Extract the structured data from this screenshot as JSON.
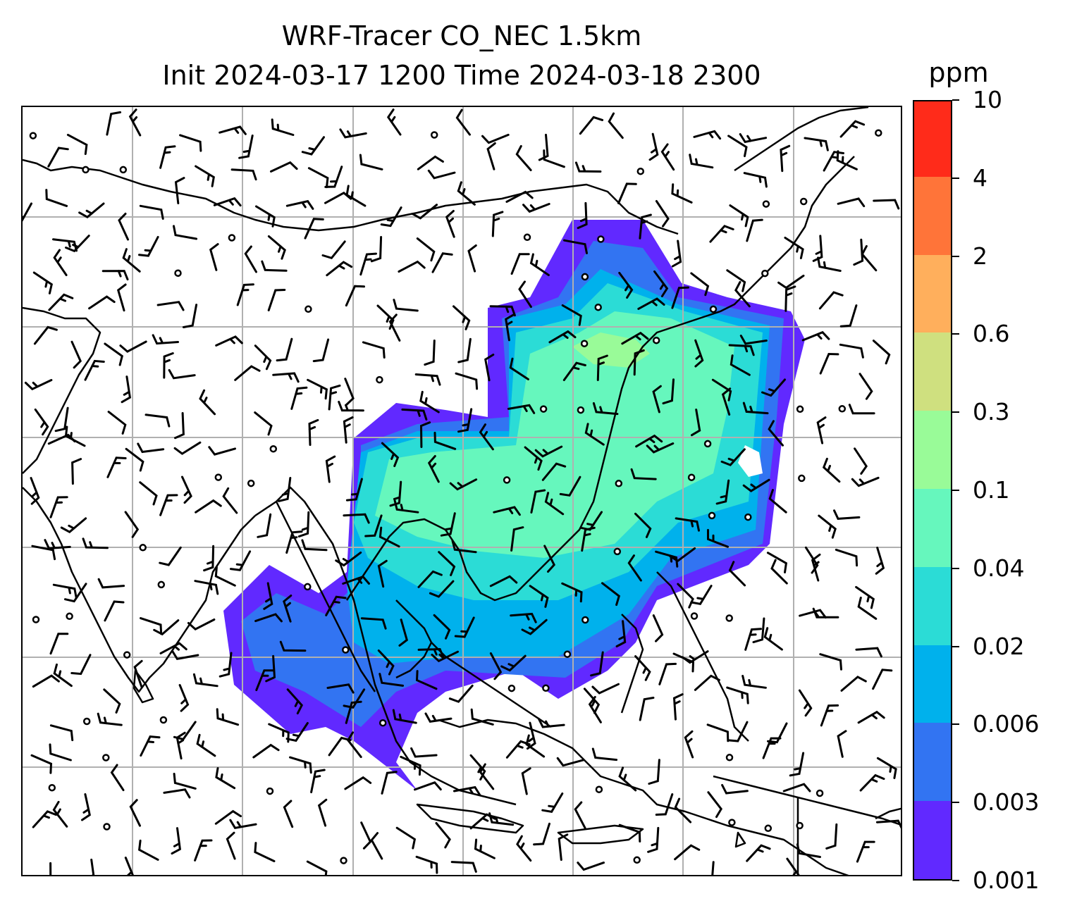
{
  "title": {
    "line1": "WRF-Tracer CO_NEC 1.5km",
    "line2": "Init 2024-03-17 1200 Time 2024-03-18 2300"
  },
  "colorbar": {
    "unit": "ppm",
    "ticks": [
      "0.001",
      "0.003",
      "0.006",
      "0.02",
      "0.04",
      "0.1",
      "0.3",
      "0.6",
      "2",
      "4",
      "10"
    ],
    "colors": [
      "#6129ff",
      "#3274f2",
      "#00b1ec",
      "#2bdcd6",
      "#66f7bd",
      "#99fb98",
      "#cfe07f",
      "#ffaf5c",
      "#ff7439",
      "#ff2b1a"
    ]
  },
  "map": {
    "region": "South and Southeast Asia, East Asia",
    "gridlines": true,
    "coastline_color": "#000000",
    "gridline_color": "#b0b0b0",
    "overlay": "wind barbs"
  }
}
